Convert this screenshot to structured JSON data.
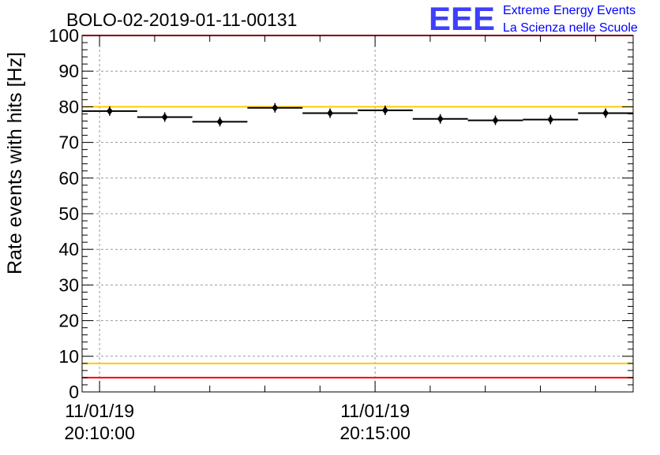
{
  "chart_data": {
    "type": "scatter",
    "title": "BOLO-02-2019-01-11-00131",
    "ylabel": "Rate events with hits [Hz]",
    "xlabel": "",
    "ylim": [
      0,
      100
    ],
    "xlim": [
      "2019-01-11 20:09:41",
      "2019-01-11 20:19:41"
    ],
    "y_ticks": [
      0,
      10,
      20,
      30,
      40,
      50,
      60,
      70,
      80,
      90,
      100
    ],
    "x_tick_labels": [
      {
        "time": "2019-01-11 20:10:00",
        "line1": "11/01/19",
        "line2": "20:10:00"
      },
      {
        "time": "2019-01-11 20:15:00",
        "line1": "11/01/19",
        "line2": "20:15:00"
      }
    ],
    "grid": true,
    "series": [
      {
        "marker": "diamond",
        "color": "#000000",
        "points": [
          {
            "x_start": "2019-01-11 20:09:41",
            "x_end": "2019-01-11 20:10:41",
            "y": 78.8
          },
          {
            "x_start": "2019-01-11 20:10:41",
            "x_end": "2019-01-11 20:11:41",
            "y": 77.1
          },
          {
            "x_start": "2019-01-11 20:11:41",
            "x_end": "2019-01-11 20:12:41",
            "y": 75.8
          },
          {
            "x_start": "2019-01-11 20:12:41",
            "x_end": "2019-01-11 20:13:41",
            "y": 79.7
          },
          {
            "x_start": "2019-01-11 20:13:41",
            "x_end": "2019-01-11 20:14:41",
            "y": 78.2
          },
          {
            "x_start": "2019-01-11 20:14:41",
            "x_end": "2019-01-11 20:15:41",
            "y": 79.0
          },
          {
            "x_start": "2019-01-11 20:15:41",
            "x_end": "2019-01-11 20:16:41",
            "y": 76.6
          },
          {
            "x_start": "2019-01-11 20:16:41",
            "x_end": "2019-01-11 20:17:41",
            "y": 76.2
          },
          {
            "x_start": "2019-01-11 20:17:41",
            "x_end": "2019-01-11 20:18:41",
            "y": 76.4
          },
          {
            "x_start": "2019-01-11 20:18:41",
            "x_end": "2019-01-11 20:19:41",
            "y": 78.2
          }
        ]
      }
    ],
    "reference_lines": [
      {
        "y": 100,
        "color": "#ff0000"
      },
      {
        "y": 80,
        "color": "#ffcc00"
      },
      {
        "y": 8,
        "color": "#ffcc00"
      },
      {
        "y": 4,
        "color": "#ff0000"
      }
    ]
  },
  "logo": {
    "text": "EEE",
    "line1": "Extreme Energy Events",
    "line2": "La Scienza nelle Scuole",
    "color": "#0000ff"
  }
}
